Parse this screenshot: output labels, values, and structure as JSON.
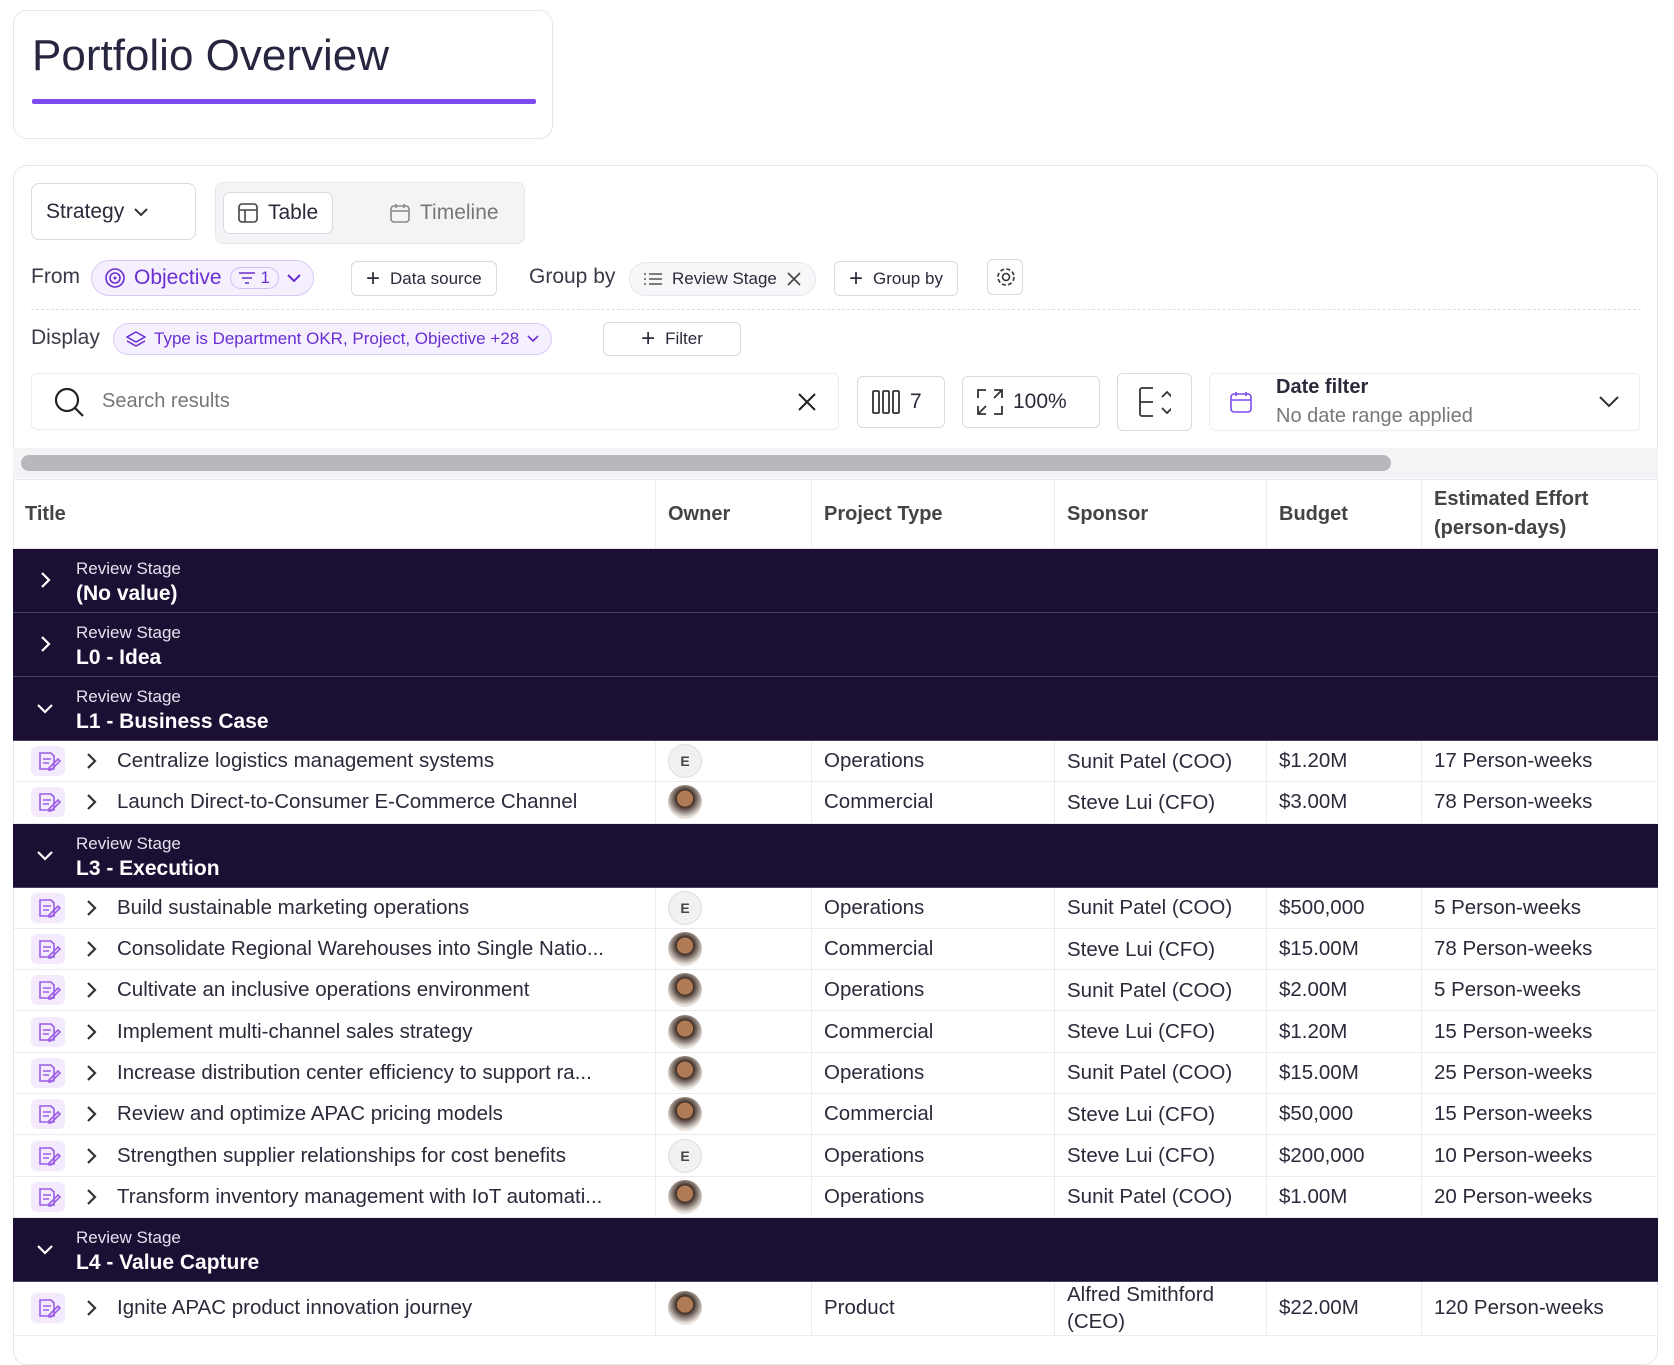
{
  "header": {
    "title": "Portfolio Overview"
  },
  "toolbar": {
    "view_selector": "Strategy",
    "tabs": [
      "Table",
      "Timeline"
    ],
    "from_label": "From",
    "source": "Objective",
    "source_filter_count": "1",
    "data_source_button": "Data source",
    "group_by_label": "Group by",
    "group_by_value": "Review Stage",
    "group_by_button": "Group by",
    "display_label": "Display",
    "display_filter": "Type is Department OKR, Project, Objective +28",
    "filter_button": "Filter",
    "search_placeholder": "Search results",
    "columns_count": "7",
    "zoom": "100%",
    "date_filter_title": "Date filter",
    "date_filter_value": "No date range applied"
  },
  "table": {
    "columns": [
      "Title",
      "Owner",
      "Project Type",
      "Sponsor",
      "Budget",
      "Estimated Effort (person-days)"
    ],
    "groups": [
      {
        "label": "Review Stage",
        "value": "(No value)",
        "expanded": false,
        "rows": []
      },
      {
        "label": "Review Stage",
        "value": "L0 - Idea",
        "expanded": false,
        "rows": []
      },
      {
        "label": "Review Stage",
        "value": "L1 - Business Case",
        "expanded": true,
        "rows": [
          {
            "title": "Centralize logistics management systems",
            "owner": "E",
            "project_type": "Operations",
            "sponsor": "Sunit Patel (COO)",
            "budget": "$1.20M",
            "effort": "17 Person-weeks"
          },
          {
            "title": "Launch Direct-to-Consumer E-Commerce Channel",
            "owner": null,
            "project_type": "Commercial",
            "sponsor": "Steve Lui (CFO)",
            "budget": "$3.00M",
            "effort": "78 Person-weeks"
          }
        ]
      },
      {
        "label": "Review Stage",
        "value": "L3 - Execution",
        "expanded": true,
        "rows": [
          {
            "title": "Build sustainable marketing operations",
            "owner": "E",
            "project_type": "Operations",
            "sponsor": "Sunit Patel (COO)",
            "budget": "$500,000",
            "effort": "5 Person-weeks"
          },
          {
            "title": "Consolidate Regional Warehouses into Single Natio...",
            "owner": null,
            "project_type": "Commercial",
            "sponsor": "Steve Lui (CFO)",
            "budget": "$15.00M",
            "effort": "78 Person-weeks"
          },
          {
            "title": "Cultivate an inclusive operations environment",
            "owner": null,
            "project_type": "Operations",
            "sponsor": "Sunit Patel (COO)",
            "budget": "$2.00M",
            "effort": "5 Person-weeks"
          },
          {
            "title": "Implement multi-channel sales strategy",
            "owner": null,
            "project_type": "Commercial",
            "sponsor": "Steve Lui (CFO)",
            "budget": "$1.20M",
            "effort": "15 Person-weeks"
          },
          {
            "title": "Increase distribution center efficiency to support ra...",
            "owner": null,
            "project_type": "Operations",
            "sponsor": "Sunit Patel (COO)",
            "budget": "$15.00M",
            "effort": "25 Person-weeks"
          },
          {
            "title": "Review and optimize APAC pricing models",
            "owner": null,
            "project_type": "Commercial",
            "sponsor": "Steve Lui (CFO)",
            "budget": "$50,000",
            "effort": "15 Person-weeks"
          },
          {
            "title": "Strengthen supplier relationships for cost benefits",
            "owner": "E",
            "project_type": "Operations",
            "sponsor": "Steve Lui (CFO)",
            "budget": "$200,000",
            "effort": "10 Person-weeks"
          },
          {
            "title": "Transform inventory management with IoT automati...",
            "owner": null,
            "project_type": "Operations",
            "sponsor": "Sunit Patel (COO)",
            "budget": "$1.00M",
            "effort": "20 Person-weeks"
          }
        ]
      },
      {
        "label": "Review Stage",
        "value": "L4 - Value Capture",
        "expanded": true,
        "rows": [
          {
            "title": "Ignite APAC product innovation journey",
            "owner": null,
            "project_type": "Product",
            "sponsor": "Alfred Smithford (CEO)",
            "budget": "$22.00M",
            "effort": "120 Person-weeks"
          }
        ]
      }
    ]
  }
}
